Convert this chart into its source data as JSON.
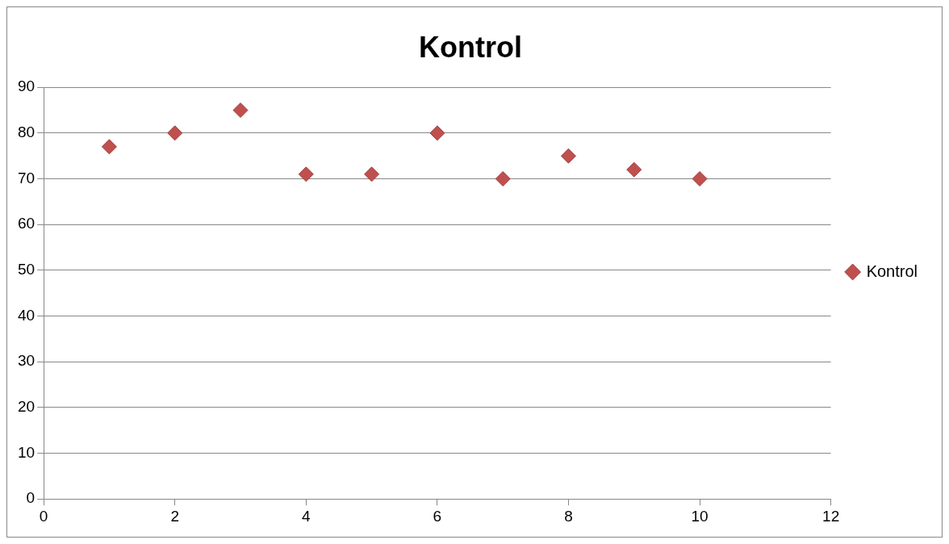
{
  "chart_data": {
    "type": "scatter",
    "title": "Kontrol",
    "x": [
      1,
      2,
      3,
      4,
      5,
      6,
      7,
      8,
      9,
      10
    ],
    "series": [
      {
        "name": "Kontrol",
        "color": "#c0504d",
        "values": [
          77,
          80,
          85,
          71,
          71,
          80,
          70,
          75,
          72,
          70
        ]
      }
    ],
    "xlim": [
      0,
      12
    ],
    "xticks": [
      0,
      2,
      4,
      6,
      8,
      10,
      12
    ],
    "ylim": [
      0,
      90
    ],
    "yticks": [
      0,
      10,
      20,
      30,
      40,
      50,
      60,
      70,
      80,
      90
    ],
    "grid": "y",
    "legend": "right",
    "marker": "diamond"
  }
}
